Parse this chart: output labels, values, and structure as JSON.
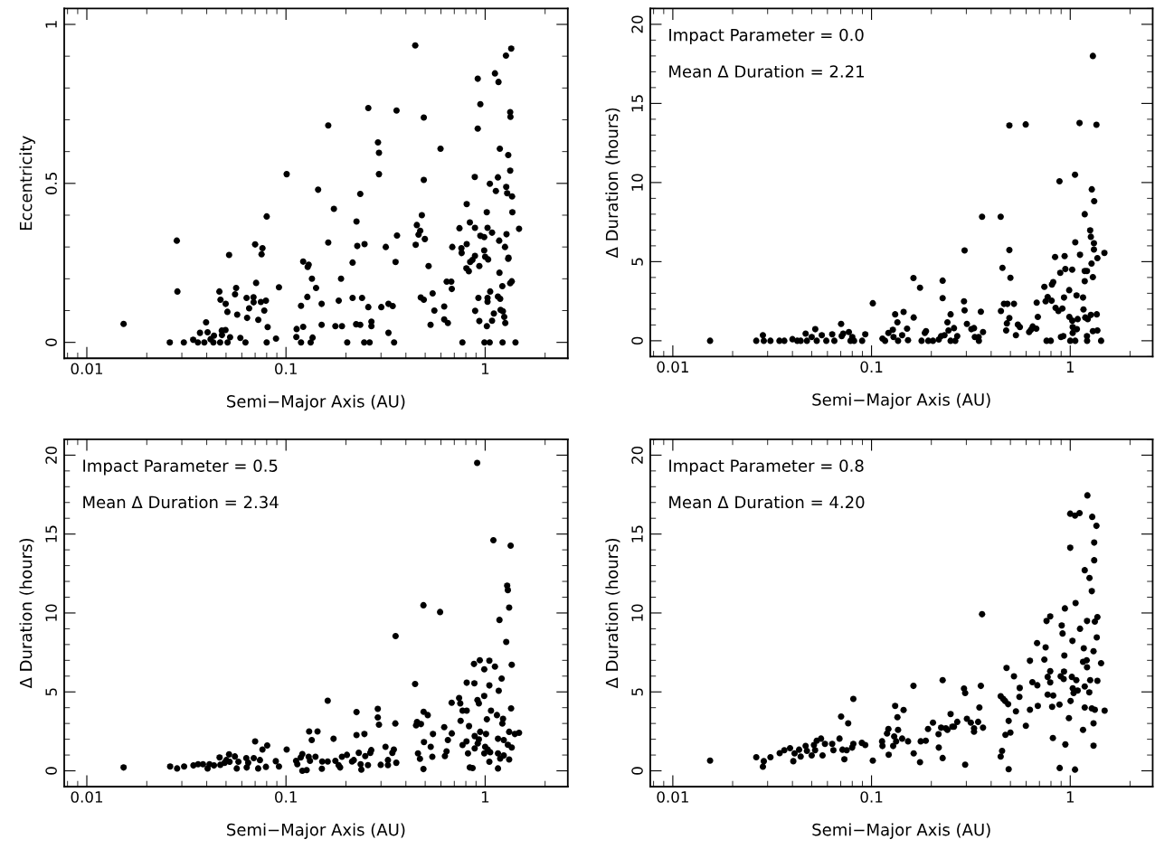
{
  "chart_data": [
    {
      "type": "scatter",
      "xlabel": "Semi−Major Axis (AU)",
      "ylabel": "Eccentricity",
      "log": "x",
      "marker": "circle",
      "color": "#000000",
      "grid": false,
      "xlim": [
        0.0077,
        2.6
      ],
      "ylim": [
        -0.05,
        1.05
      ],
      "xticks": [
        {
          "value": 0.01,
          "label": "0.01"
        },
        {
          "value": 0.1,
          "label": "0.1"
        },
        {
          "value": 1,
          "label": "1"
        }
      ],
      "yticks": [
        {
          "value": 0,
          "label": "0"
        },
        {
          "value": 0.5,
          "label": "0.5"
        },
        {
          "value": 1,
          "label": "1"
        }
      ],
      "x": [
        0.0153,
        0.0261,
        0.0283,
        0.0285,
        0.0307,
        0.0342,
        0.0361,
        0.037,
        0.0389,
        0.0397,
        0.0404,
        0.0418,
        0.0432,
        0.0435,
        0.0463,
        0.0469,
        0.0467,
        0.0476,
        0.0477,
        0.0497,
        0.0498,
        0.0508,
        0.0509,
        0.0518,
        0.0524,
        0.0555,
        0.0562,
        0.0569,
        0.059,
        0.0626,
        0.0634,
        0.0638,
        0.0653,
        0.0687,
        0.0688,
        0.07,
        0.0708,
        0.0726,
        0.0748,
        0.0754,
        0.0762,
        0.0778,
        0.0793,
        0.08,
        0.08,
        0.0809,
        0.0891,
        0.0922,
        0.1008,
        0.1127,
        0.1131,
        0.119,
        0.119,
        0.122,
        0.122,
        0.1285,
        0.13,
        0.128,
        0.133,
        0.136,
        0.135,
        0.1416,
        0.145,
        0.151,
        0.151,
        0.163,
        0.163,
        0.174,
        0.177,
        0.184,
        0.189,
        0.191,
        0.203,
        0.216,
        0.216,
        0.225,
        0.226,
        0.228,
        0.236,
        0.236,
        0.241,
        0.247,
        0.248,
        0.259,
        0.259,
        0.263,
        0.2685,
        0.2685,
        0.2897,
        0.293,
        0.293,
        0.301,
        0.317,
        0.327,
        0.327,
        0.3435,
        0.349,
        0.355,
        0.359,
        0.361,
        0.4457,
        0.448,
        0.454,
        0.463,
        0.472,
        0.475,
        0.481,
        0.492,
        0.492,
        0.492,
        0.498,
        0.52,
        0.532,
        0.545,
        0.556,
        0.597,
        0.623,
        0.623,
        0.641,
        0.65,
        0.676,
        0.68,
        0.684,
        0.743,
        0.76,
        0.769,
        0.762,
        0.805,
        0.808,
        0.808,
        0.828,
        0.838,
        0.841,
        0.863,
        0.887,
        0.889,
        0.889,
        0.891,
        0.918,
        0.918,
        0.925,
        0.935,
        0.935,
        0.946,
        0.946,
        0.989,
        0.989,
        0.992,
        1.0,
        1.019,
        1.02,
        1.028,
        1.028,
        1.028,
        1.035,
        1.054,
        1.056,
        1.06,
        1.083,
        1.083,
        1.106,
        1.12,
        1.132,
        1.159,
        1.159,
        1.167,
        1.176,
        1.18,
        1.185,
        1.19,
        1.195,
        1.22,
        1.223,
        1.228,
        1.247,
        1.262,
        1.258,
        1.272,
        1.276,
        1.28,
        1.29,
        1.306,
        1.306,
        1.31,
        1.336,
        1.34,
        1.336,
        1.336,
        1.352,
        1.36,
        1.365,
        1.37,
        1.42,
        1.48
      ],
      "values": [
        0.058,
        0,
        0.32,
        0.16,
        0,
        0.008,
        0,
        0.03,
        0,
        0.063,
        0.032,
        0.01,
        0,
        0.021,
        0.16,
        0.134,
        0,
        0.037,
        0.023,
        0.039,
        0.121,
        0.096,
        0,
        0.275,
        0.016,
        0.151,
        0.171,
        0.087,
        0.014,
        0,
        0.14,
        0.077,
        0.107,
        0.142,
        0.126,
        0.308,
        0.187,
        0.071,
        0.127,
        0.277,
        0.296,
        0.1,
        0.131,
        0.396,
        0,
        0.048,
        0.012,
        0.173,
        0.529,
        0.017,
        0.042,
        0.115,
        0,
        0.049,
        0.254,
        0.237,
        0.244,
        0.143,
        0,
        0.015,
        0.2,
        0.171,
        0.48,
        0.121,
        0.055,
        0.682,
        0.314,
        0.42,
        0.051,
        0.131,
        0.2,
        0.051,
        0,
        0.14,
        0.251,
        0.057,
        0.38,
        0.303,
        0.467,
        0.055,
        0.14,
        0,
        0.309,
        0.737,
        0.111,
        0,
        0.065,
        0.051,
        0.629,
        0.596,
        0.529,
        0.111,
        0.3,
        0.121,
        0.03,
        0.114,
        0,
        0.253,
        0.729,
        0.336,
        0.934,
        0.307,
        0.369,
        0.339,
        0.351,
        0.141,
        0.4,
        0.707,
        0.511,
        0.134,
        0.325,
        0.24,
        0.055,
        0.154,
        0.1,
        0.609,
        0.113,
        0.072,
        0.191,
        0.061,
        0.191,
        0.168,
        0.3,
        0.359,
        0.296,
        0,
        0.281,
        0.233,
        0.309,
        0.435,
        0.224,
        0.377,
        0.253,
        0.259,
        0.52,
        0.36,
        0.272,
        0.099,
        0.829,
        0.672,
        0.14,
        0.24,
        0.067,
        0.749,
        0.335,
        0.331,
        0.289,
        0,
        0.269,
        0.409,
        0.051,
        0.36,
        0.14,
        0.128,
        0.261,
        0,
        0.499,
        0.16,
        0.345,
        0.068,
        0.091,
        0.846,
        0.476,
        0.144,
        0.519,
        0.819,
        0.32,
        0.219,
        0.609,
        0.137,
        0.102,
        0.177,
        0,
        0.098,
        0.08,
        0.061,
        0.3,
        0.902,
        0.489,
        0.34,
        0.469,
        0.589,
        0.263,
        0.266,
        0.724,
        0.709,
        0.54,
        0.186,
        0.924,
        0.192,
        0.459,
        0.409,
        0,
        0.357
      ]
    },
    {
      "type": "scatter",
      "xlabel": "Semi−Major Axis (AU)",
      "ylabel": "Δ Duration (hours)",
      "log": "x",
      "marker": "circle",
      "color": "#000000",
      "grid": false,
      "annotations": [
        "Impact Parameter = 0.0",
        "Mean Δ Duration = 2.21"
      ],
      "xlim": [
        0.0077,
        2.6
      ],
      "ylim": [
        -1,
        21
      ],
      "xticks": [
        {
          "value": 0.01,
          "label": "0.01"
        },
        {
          "value": 0.1,
          "label": "0.1"
        },
        {
          "value": 1,
          "label": "1"
        }
      ],
      "yticks": [
        0,
        5,
        10,
        15,
        20
      ],
      "x": [
        0.0154,
        0.0263,
        0.0284,
        0.0287,
        0.031,
        0.0344,
        0.0364,
        0.04,
        0.0423,
        0.044,
        0.0466,
        0.0473,
        0.05,
        0.0521,
        0.053,
        0.0562,
        0.0592,
        0.0634,
        0.065,
        0.0703,
        0.0708,
        0.072,
        0.0769,
        0.0784,
        0.08,
        0.0817,
        0.0897,
        0.093,
        0.1015,
        0.1135,
        0.117,
        0.1216,
        0.128,
        0.129,
        0.1315,
        0.135,
        0.136,
        0.1426,
        0.145,
        0.151,
        0.1526,
        0.1626,
        0.163,
        0.1754,
        0.1786,
        0.1855,
        0.188,
        0.193,
        0.2038,
        0.218,
        0.224,
        0.228,
        0.228,
        0.233,
        0.241,
        0.244,
        0.25,
        0.25,
        0.26,
        0.264,
        0.27,
        0.292,
        0.294,
        0.294,
        0.302,
        0.318,
        0.328,
        0.331,
        0.347,
        0.346,
        0.355,
        0.36,
        0.364,
        0.4467,
        0.448,
        0.456,
        0.464,
        0.476,
        0.48,
        0.483,
        0.494,
        0.494,
        0.494,
        0.5,
        0.521,
        0.533,
        0.545,
        0.558,
        0.597,
        0.621,
        0.634,
        0.647,
        0.675,
        0.678,
        0.687,
        0.741,
        0.752,
        0.76,
        0.77,
        0.798,
        0.806,
        0.809,
        0.821,
        0.839,
        0.844,
        0.872,
        0.883,
        0.891,
        0.898,
        0.913,
        0.923,
        0.9305,
        0.937,
        0.945,
        0.988,
        0.99,
        1.0,
        1.023,
        1.024,
        1.029,
        1.029,
        1.057,
        1.06,
        1.06,
        1.076,
        1.08,
        1.09,
        1.114,
        1.12,
        1.16,
        1.166,
        1.183,
        1.183,
        1.183,
        1.19,
        1.214,
        1.214,
        1.216,
        1.225,
        1.26,
        1.27,
        1.27,
        1.28,
        1.3,
        1.3,
        1.3,
        1.284,
        1.316,
        1.316,
        1.32,
        1.355,
        1.36,
        1.37,
        1.37,
        1.43,
        1.486
      ],
      "values": [
        0,
        0,
        0.35,
        0,
        0,
        0,
        0,
        0.1,
        0,
        0,
        0.45,
        0,
        0.24,
        0.73,
        0,
        0.35,
        0,
        0.41,
        0,
        1.06,
        0.29,
        0.45,
        0.55,
        0,
        0.24,
        0,
        0,
        0.41,
        2.37,
        0.14,
        0,
        0.49,
        0.69,
        0.24,
        1.67,
        1.16,
        0,
        0.35,
        1.82,
        0.76,
        0.04,
        3.96,
        1.47,
        3.35,
        0,
        0.49,
        0.61,
        0,
        0,
        0.08,
        0.29,
        3.8,
        2.69,
        0.35,
        1.16,
        0.65,
        1.67,
        0,
        0.8,
        0,
        0.29,
        2.49,
        5.71,
        1.92,
        1.06,
        0.73,
        0.8,
        0.24,
        0,
        0.24,
        1.84,
        7.84,
        0.55,
        7.84,
        1.88,
        4.61,
        2.33,
        0.65,
        1.1,
        2.33,
        13.61,
        5.73,
        1.43,
        3.98,
        2.33,
        0.35,
        1.02,
        0.86,
        13.67,
        0.55,
        0.69,
        0.9,
        0.76,
        2.41,
        1.51,
        3.41,
        2.49,
        0,
        2.76,
        0,
        2.53,
        3.55,
        3.71,
        5.29,
        2.08,
        1.88,
        10.08,
        4.29,
        0.24,
        2.04,
        0.29,
        2.73,
        5.35,
        4.53,
        3.2,
        1.51,
        0,
        4.49,
        1.27,
        0.86,
        0.49,
        10.49,
        6.22,
        0,
        2.86,
        0.73,
        1.37,
        13.76,
        5.43,
        2.73,
        1.98,
        8.0,
        4.41,
        3.76,
        1.47,
        4.41,
        0.29,
        0,
        1.37,
        6.98,
        1.63,
        6.57,
        4.88,
        18.0,
        0.61,
        4.02,
        9.57,
        5.76,
        6.16,
        8.82,
        13.65,
        1.67,
        0.65,
        5.22,
        0,
        5.55
      ]
    },
    {
      "type": "scatter",
      "xlabel": "Semi−Major Axis (AU)",
      "ylabel": "Δ Duration (hours)",
      "log": "x",
      "marker": "circle",
      "color": "#000000",
      "grid": false,
      "annotations": [
        "Impact Parameter = 0.5",
        "Mean Δ Duration = 2.34"
      ],
      "xlim": [
        0.0077,
        2.6
      ],
      "ylim": [
        -1,
        21
      ],
      "xticks": [
        {
          "value": 0.01,
          "label": "0.01"
        },
        {
          "value": 0.1,
          "label": "0.1"
        },
        {
          "value": 1,
          "label": "1"
        }
      ],
      "yticks": [
        0,
        5,
        10,
        15,
        20
      ],
      "x": [
        0.0153,
        0.0262,
        0.0284,
        0.0308,
        0.0343,
        0.0362,
        0.0383,
        0.0404,
        0.0413,
        0.0435,
        0.0464,
        0.0468,
        0.0492,
        0.0502,
        0.0518,
        0.0521,
        0.0554,
        0.0566,
        0.0577,
        0.0632,
        0.0635,
        0.0646,
        0.0689,
        0.07,
        0.0725,
        0.074,
        0.0762,
        0.0793,
        0.0805,
        0.0889,
        0.0922,
        0.1008,
        0.1124,
        0.114,
        0.1186,
        0.1208,
        0.1208,
        0.127,
        0.13,
        0.1307,
        0.132,
        0.1347,
        0.1406,
        0.144,
        0.1514,
        0.152,
        0.162,
        0.162,
        0.1733,
        0.177,
        0.1837,
        0.187,
        0.191,
        0.2023,
        0.2146,
        0.219,
        0.226,
        0.226,
        0.232,
        0.237,
        0.239,
        0.2476,
        0.25,
        0.258,
        0.265,
        0.268,
        0.289,
        0.289,
        0.293,
        0.299,
        0.316,
        0.325,
        0.325,
        0.342,
        0.348,
        0.355,
        0.354,
        0.358,
        0.445,
        0.45,
        0.455,
        0.46,
        0.4707,
        0.476,
        0.49,
        0.491,
        0.493,
        0.49,
        0.515,
        0.533,
        0.543,
        0.547,
        0.594,
        0.623,
        0.628,
        0.64,
        0.65,
        0.679,
        0.68,
        0.74,
        0.75,
        0.753,
        0.77,
        0.77,
        0.806,
        0.808,
        0.808,
        0.82,
        0.83,
        0.837,
        0.865,
        0.879,
        0.883,
        0.886,
        0.886,
        0.912,
        0.915,
        0.918,
        0.93,
        0.93,
        0.94,
        0.944,
        0.989,
        0.99,
        0.99,
        1.0,
        1.01,
        1.02,
        1.03,
        1.05,
        1.05,
        1.05,
        1.06,
        1.07,
        1.1,
        1.12,
        1.146,
        1.16,
        1.16,
        1.16,
        1.17,
        1.18,
        1.19,
        1.21,
        1.22,
        1.23,
        1.24,
        1.24,
        1.276,
        1.29,
        1.3,
        1.3,
        1.32,
        1.32,
        1.32,
        1.343,
        1.35,
        1.36,
        1.36,
        1.41,
        1.48
      ],
      "values": [
        0.21,
        0.27,
        0.15,
        0.27,
        0.34,
        0.42,
        0.42,
        0.15,
        0.42,
        0.34,
        0.85,
        0.38,
        0.51,
        0.68,
        1.04,
        0.57,
        0.91,
        0.15,
        0.57,
        0.8,
        0.21,
        0.51,
        0.8,
        1.86,
        0.15,
        0.68,
        1.35,
        0.25,
        1.61,
        0.61,
        0.27,
        1.35,
        0.63,
        0.42,
        0.85,
        1.06,
        0,
        0.04,
        0.89,
        2.49,
        0.63,
        1.95,
        0.89,
        2.49,
        0.13,
        0.59,
        4.44,
        0.59,
        2.03,
        0.63,
        0.36,
        0.21,
        0.89,
        1.01,
        0.59,
        0.68,
        3.72,
        2.26,
        1.14,
        0.42,
        0.08,
        2.33,
        0.93,
        0.36,
        1.14,
        1.31,
        3.93,
        3.38,
        2.92,
        0.38,
        1.52,
        0.68,
        0.36,
        1.14,
        1.35,
        8.54,
        3.0,
        0.51,
        5.5,
        2.88,
        3.09,
        1.1,
        0.76,
        2.96,
        10.49,
        3.74,
        1.82,
        0.11,
        3.53,
        1.52,
        0.89,
        2.33,
        10.06,
        2.77,
        0.93,
        1.23,
        1.95,
        4.31,
        2.37,
        4.61,
        4.27,
        3.17,
        1.63,
        3.81,
        1.86,
        3.81,
        5.58,
        1.1,
        2.83,
        0.21,
        0.17,
        6.77,
        5.54,
        2.2,
        1.42,
        19.51,
        4.48,
        1.73,
        1.99,
        4.27,
        7.0,
        2.47,
        4.74,
        6.43,
        1.1,
        1.52,
        2.33,
        3.26,
        1.35,
        5.41,
        6.98,
        0.57,
        1.18,
        3.81,
        14.61,
        6.6,
        3.53,
        2.03,
        1.1,
        0.15,
        5.07,
        9.56,
        0.78,
        5.84,
        3.0,
        3.3,
        1.95,
        0.97,
        8.16,
        11.73,
        11.44,
        1.65,
        10.34,
        0.72,
        2.47,
        14.27,
        3.95,
        6.72,
        1.48,
        2.33,
        2.41
      ]
    },
    {
      "type": "scatter",
      "xlabel": "Semi−Major Axis (AU)",
      "ylabel": "Δ Duration (hours)",
      "log": "x",
      "marker": "circle",
      "color": "#000000",
      "grid": false,
      "annotations": [
        "Impact Parameter = 0.8",
        "Mean Δ Duration = 4.20"
      ],
      "xlim": [
        0.0077,
        2.6
      ],
      "ylim": [
        -1,
        21
      ],
      "xticks": [
        {
          "value": 0.01,
          "label": "0.01"
        },
        {
          "value": 0.1,
          "label": "0.1"
        },
        {
          "value": 1,
          "label": "1"
        }
      ],
      "yticks": [
        0,
        5,
        10,
        15,
        20
      ],
      "x": [
        0.0154,
        0.0263,
        0.0284,
        0.0287,
        0.031,
        0.0345,
        0.0364,
        0.0389,
        0.0404,
        0.041,
        0.0432,
        0.044,
        0.0466,
        0.0473,
        0.05,
        0.0513,
        0.052,
        0.053,
        0.0557,
        0.0567,
        0.0583,
        0.0634,
        0.0643,
        0.069,
        0.0703,
        0.0714,
        0.073,
        0.075,
        0.0763,
        0.0799,
        0.081,
        0.081,
        0.0894,
        0.093,
        0.1015,
        0.113,
        0.1135,
        0.1197,
        0.1216,
        0.122,
        0.1285,
        0.13,
        0.1315,
        0.133,
        0.135,
        0.136,
        0.1426,
        0.145,
        0.1527,
        0.1626,
        0.163,
        0.1754,
        0.1768,
        0.1875,
        0.1925,
        0.2038,
        0.2174,
        0.218,
        0.224,
        0.228,
        0.228,
        0.2366,
        0.241,
        0.25,
        0.255,
        0.26,
        0.27,
        0.292,
        0.296,
        0.296,
        0.302,
        0.316,
        0.328,
        0.328,
        0.344,
        0.349,
        0.355,
        0.36,
        0.364,
        0.4467,
        0.4467,
        0.454,
        0.46,
        0.47,
        0.472,
        0.478,
        0.487,
        0.49,
        0.49,
        0.5,
        0.521,
        0.533,
        0.555,
        0.557,
        0.598,
        0.627,
        0.627,
        0.645,
        0.681,
        0.683,
        0.687,
        0.741,
        0.752,
        0.76,
        0.77,
        0.77,
        0.793,
        0.793,
        0.793,
        0.811,
        0.818,
        0.821,
        0.883,
        0.885,
        0.895,
        0.906,
        0.915,
        0.927,
        0.9305,
        0.934,
        0.94,
        0.945,
        0.985,
        1.0,
        1.0,
        1.004,
        1.019,
        1.026,
        1.03,
        1.04,
        1.057,
        1.057,
        1.064,
        1.073,
        1.09,
        1.114,
        1.12,
        1.16,
        1.16,
        1.17,
        1.183,
        1.183,
        1.183,
        1.21,
        1.215,
        1.215,
        1.22,
        1.247,
        1.25,
        1.26,
        1.284,
        1.29,
        1.284,
        1.31,
        1.31,
        1.31,
        1.32,
        1.32,
        1.33,
        1.355,
        1.37,
        1.36,
        1.37,
        1.33,
        1.43,
        1.49
      ],
      "values": [
        0.65,
        0.86,
        0.26,
        0.61,
        0.86,
        1.12,
        1.3,
        1.43,
        0.61,
        1.1,
        1.34,
        0.9,
        1.57,
        1.26,
        0.98,
        1.63,
        1.3,
        1.91,
        2.04,
        0.98,
        1.71,
        1.71,
        1.3,
        2.04,
        3.44,
        1.34,
        0.73,
        1.3,
        3.01,
        1.47,
        4.56,
        1.71,
        1.77,
        1.63,
        0.65,
        1.87,
        1.57,
        2.36,
        2.65,
        1.02,
        1.57,
        2.18,
        4.11,
        1.87,
        3.4,
        2.59,
        2.04,
        3.85,
        1.87,
        5.38,
        1.1,
        0.55,
        1.87,
        1.91,
        2.65,
        3.05,
        2.32,
        1.47,
        2.73,
        0.81,
        5.74,
        2.69,
        2.59,
        3.6,
        2.79,
        2.79,
        3.1,
        5.21,
        4.93,
        0.39,
        3.3,
        3.05,
        2.48,
        2.69,
        3.1,
        4.01,
        5.38,
        9.92,
        2.73,
        4.73,
        0.9,
        1.26,
        4.56,
        4.42,
        2.28,
        6.52,
        4.22,
        3.16,
        0.1,
        2.42,
        5.99,
        3.77,
        4.68,
        5.25,
        2.85,
        3.87,
        6.97,
        5.62,
        8.09,
        5.42,
        4.11,
        7.05,
        7.82,
        9.49,
        4.83,
        5.95,
        9.78,
        6.31,
        5.6,
        4.05,
        2.08,
        4.77,
        4.2,
        0.18,
        5.99,
        9.21,
        8.7,
        5.82,
        6.29,
        7.31,
        10.29,
        1.67,
        3.34,
        16.29,
        14.13,
        4.42,
        5.95,
        8.23,
        5.23,
        4.93,
        16.17,
        0.08,
        10.63,
        5.74,
        5.09,
        16.33,
        9.0,
        6.9,
        2.59,
        7.76,
        12.71,
        5.34,
        4.01,
        7.0,
        9.49,
        6.56,
        17.45,
        4.97,
        12.22,
        5.74,
        11.38,
        16.09,
        3.95,
        7.58,
        1.59,
        3.01,
        14.46,
        13.34,
        9.45,
        15.52,
        9.74,
        8.45,
        5.7,
        3.87,
        6.82,
        3.81
      ]
    }
  ]
}
